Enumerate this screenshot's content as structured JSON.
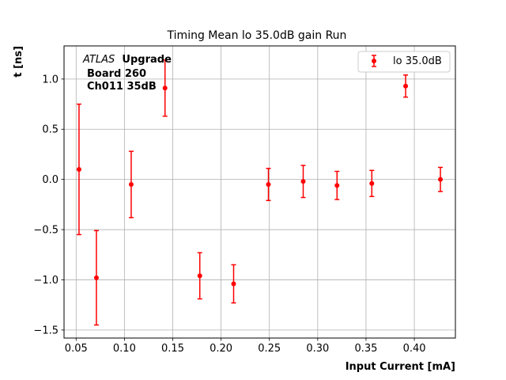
{
  "chart_data": {
    "type": "scatter",
    "title": "Timing Mean lo 35.0dB gain Run",
    "xlabel": "Input Current [mA]",
    "ylabel": "t [ns]",
    "xlim": [
      0.0375,
      0.4425
    ],
    "ylim": [
      -1.58,
      1.33
    ],
    "x_ticks": [
      0.05,
      0.1,
      0.15,
      0.2,
      0.25,
      0.3,
      0.35,
      0.4
    ],
    "x_tick_labels": [
      "0.05",
      "0.10",
      "0.15",
      "0.20",
      "0.25",
      "0.30",
      "0.35",
      "0.40"
    ],
    "y_ticks": [
      -1.5,
      -1.0,
      -0.5,
      0.0,
      0.5,
      1.0
    ],
    "y_tick_labels": [
      "−1.5",
      "−1.0",
      "−0.5",
      "0.0",
      "0.5",
      "1.0"
    ],
    "grid": true,
    "legend_position": "top-right",
    "annotation": {
      "atlas": "ATLAS",
      "upgrade": "Upgrade",
      "board": "Board 260",
      "channel": "Ch011 35dB"
    },
    "series": [
      {
        "name": "lo 35.0dB",
        "color": "#ff0000",
        "x": [
          0.053,
          0.071,
          0.107,
          0.142,
          0.178,
          0.213,
          0.249,
          0.285,
          0.32,
          0.356,
          0.391,
          0.427
        ],
        "y": [
          0.1,
          -0.98,
          -0.05,
          0.91,
          -0.96,
          -1.04,
          -0.05,
          -0.02,
          -0.06,
          -0.04,
          0.93,
          0.0
        ],
        "yerr": [
          0.65,
          0.47,
          0.33,
          0.28,
          0.23,
          0.19,
          0.16,
          0.16,
          0.14,
          0.13,
          0.11,
          0.12
        ]
      }
    ]
  }
}
